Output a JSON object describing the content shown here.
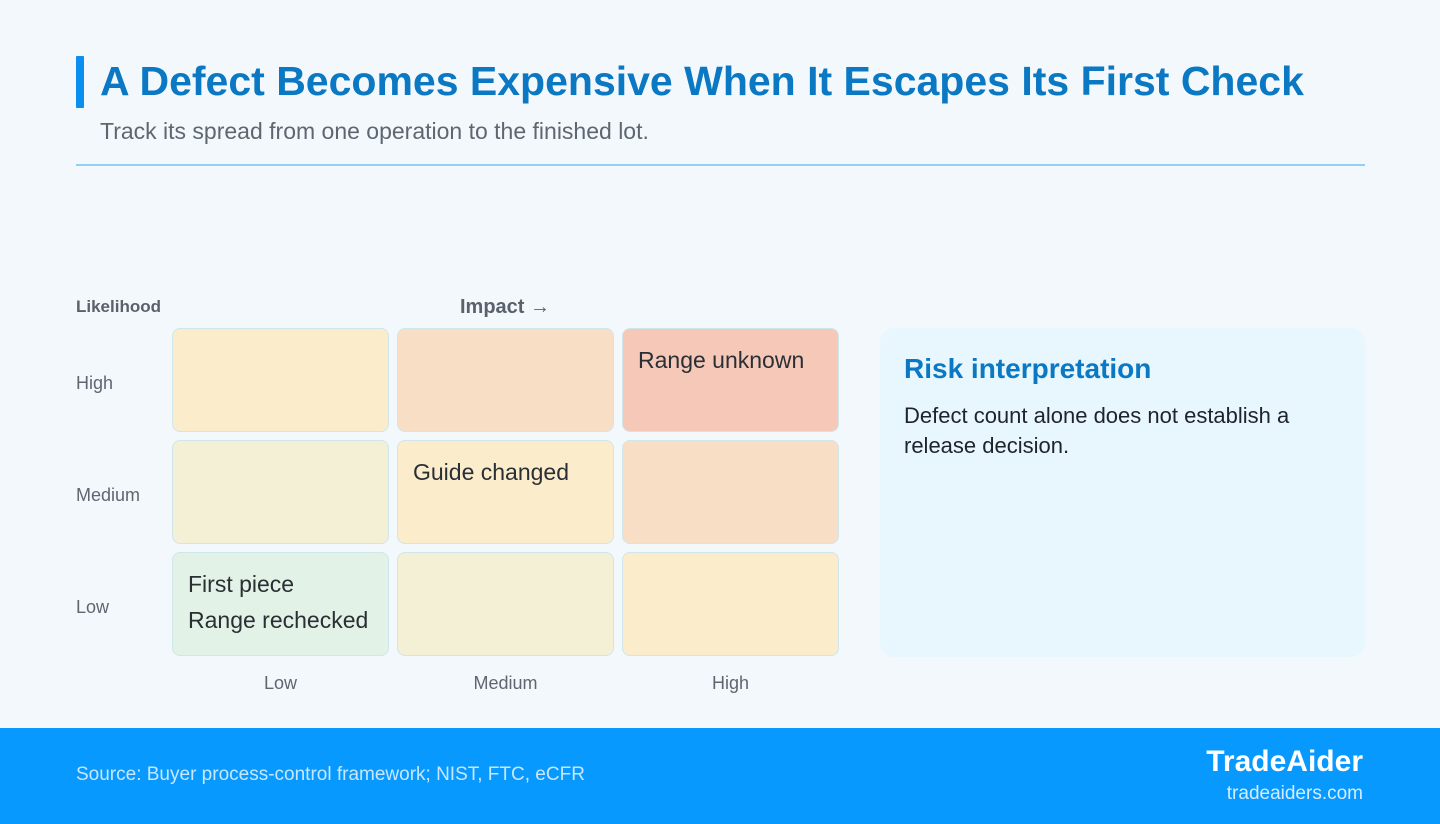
{
  "header": {
    "title": "A Defect Becomes Expensive When It Escapes Its First Check",
    "subtitle": "Track its spread from one operation to the finished lot."
  },
  "matrix": {
    "y_axis_title": "Likelihood",
    "x_axis_title": "Impact →",
    "rows": [
      "High",
      "Medium",
      "Low"
    ],
    "columns": [
      "Low",
      "Medium",
      "High"
    ],
    "cells": [
      [
        {
          "color": "#fbedcc",
          "items": []
        },
        {
          "color": "#f9dec6",
          "items": []
        },
        {
          "color": "#f6c8b8",
          "items": [
            "Range unknown"
          ]
        }
      ],
      [
        {
          "color": "#f4f0d5",
          "items": []
        },
        {
          "color": "#fbedcc",
          "items": [
            "Guide changed"
          ]
        },
        {
          "color": "#f9dec6",
          "items": []
        }
      ],
      [
        {
          "color": "#e3f2e6",
          "items": [
            "First piece",
            "Range rechecked"
          ]
        },
        {
          "color": "#f4f0d5",
          "items": []
        },
        {
          "color": "#fbedcc",
          "items": []
        }
      ]
    ]
  },
  "panel": {
    "title": "Risk interpretation",
    "body": "Defect count alone does not establish a release decision."
  },
  "footer": {
    "source": "Source: Buyer process-control framework; NIST, FTC, eCFR",
    "brand": "TradeAider",
    "url": "tradeaiders.com"
  },
  "colors": {
    "accent": "#0a8ff0",
    "title": "#0a78c2",
    "footer_bg": "#0899ff"
  }
}
